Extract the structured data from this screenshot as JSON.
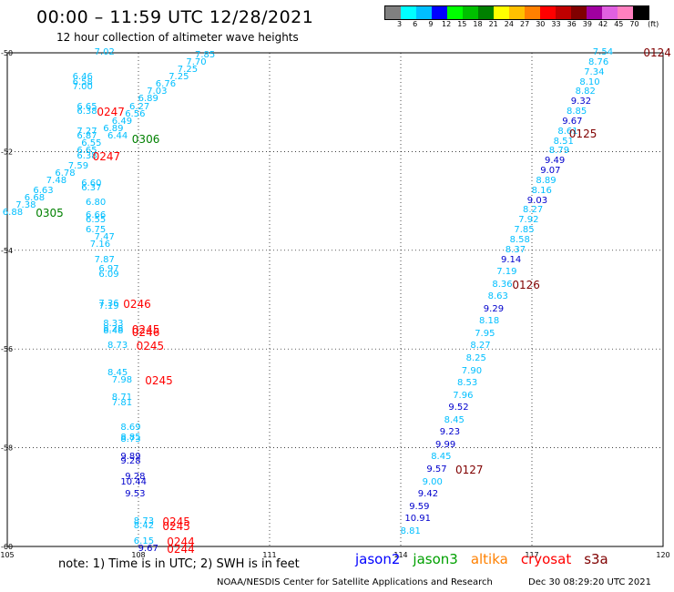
{
  "header": {
    "title": "00:00 – 11:59 UTC 12/28/2021",
    "subtitle": "12 hour collection of altimeter wave heights"
  },
  "colorbar": {
    "colors": [
      "#808080",
      "#00ffff",
      "#00bfff",
      "#0000ff",
      "#00ff00",
      "#00c000",
      "#008000",
      "#ffff00",
      "#ffc000",
      "#ff8000",
      "#ff0000",
      "#c00000",
      "#800000",
      "#a000a0",
      "#e060e0",
      "#ff80c0",
      "#000000"
    ],
    "ticks": [
      "3",
      "6",
      "9",
      "12",
      "15",
      "18",
      "21",
      "24",
      "27",
      "30",
      "33",
      "36",
      "39",
      "42",
      "45",
      "70"
    ],
    "unit": "(ft)"
  },
  "axes": {
    "x_ticks": [
      "105",
      "108",
      "111",
      "114",
      "117",
      "120"
    ],
    "y_ticks": [
      "-50",
      "-52",
      "-54",
      "-56",
      "-58",
      "-60"
    ],
    "lon_range": [
      105,
      120
    ],
    "lat_range": [
      -60,
      -50
    ]
  },
  "swh_labels": [
    {
      "t": "7.02",
      "lon": 107.2,
      "lat": -50.0,
      "c": "#00bfff"
    },
    {
      "t": "6.46",
      "lon": 106.7,
      "lat": -50.5,
      "c": "#00bfff"
    },
    {
      "t": "6.58",
      "lon": 106.7,
      "lat": -50.6,
      "c": "#00bfff"
    },
    {
      "t": "7.00",
      "lon": 106.7,
      "lat": -50.7,
      "c": "#00bfff"
    },
    {
      "t": "6.65",
      "lon": 106.8,
      "lat": -51.1,
      "c": "#00bfff"
    },
    {
      "t": "6.38",
      "lon": 106.8,
      "lat": -51.2,
      "c": "#00bfff"
    },
    {
      "t": "7.27",
      "lon": 106.8,
      "lat": -51.6,
      "c": "#00bfff"
    },
    {
      "t": "6.87",
      "lon": 106.8,
      "lat": -51.7,
      "c": "#00bfff"
    },
    {
      "t": "6.44",
      "lon": 107.5,
      "lat": -51.7,
      "c": "#00bfff"
    },
    {
      "t": "6.55",
      "lon": 106.9,
      "lat": -51.85,
      "c": "#00bfff"
    },
    {
      "t": "6.65",
      "lon": 106.8,
      "lat": -52.0,
      "c": "#00bfff"
    },
    {
      "t": "6.38",
      "lon": 106.8,
      "lat": -52.1,
      "c": "#00bfff"
    },
    {
      "t": "7.59",
      "lon": 106.6,
      "lat": -52.3,
      "c": "#00bfff"
    },
    {
      "t": "6.78",
      "lon": 106.3,
      "lat": -52.45,
      "c": "#00bfff"
    },
    {
      "t": "7.48",
      "lon": 106.1,
      "lat": -52.6,
      "c": "#00bfff"
    },
    {
      "t": "6.63",
      "lon": 105.8,
      "lat": -52.8,
      "c": "#00bfff"
    },
    {
      "t": "6.68",
      "lon": 105.6,
      "lat": -52.95,
      "c": "#00bfff"
    },
    {
      "t": "7.38",
      "lon": 105.4,
      "lat": -53.1,
      "c": "#00bfff"
    },
    {
      "t": "6.88",
      "lon": 105.1,
      "lat": -53.25,
      "c": "#00bfff"
    },
    {
      "t": "6.60",
      "lon": 106.9,
      "lat": -52.65,
      "c": "#00bfff"
    },
    {
      "t": "6.37",
      "lon": 106.9,
      "lat": -52.75,
      "c": "#00bfff"
    },
    {
      "t": "6.80",
      "lon": 107.0,
      "lat": -53.05,
      "c": "#00bfff"
    },
    {
      "t": "6.66",
      "lon": 107.0,
      "lat": -53.3,
      "c": "#00bfff"
    },
    {
      "t": "6.55",
      "lon": 107.0,
      "lat": -53.4,
      "c": "#00bfff"
    },
    {
      "t": "6.75",
      "lon": 107.0,
      "lat": -53.6,
      "c": "#00bfff"
    },
    {
      "t": "7.47",
      "lon": 107.2,
      "lat": -53.75,
      "c": "#00bfff"
    },
    {
      "t": "7.16",
      "lon": 107.1,
      "lat": -53.9,
      "c": "#00bfff"
    },
    {
      "t": "7.87",
      "lon": 107.2,
      "lat": -54.2,
      "c": "#00bfff"
    },
    {
      "t": "6.97",
      "lon": 107.3,
      "lat": -54.4,
      "c": "#00bfff"
    },
    {
      "t": "6.09",
      "lon": 107.3,
      "lat": -54.5,
      "c": "#00bfff"
    },
    {
      "t": "7.36",
      "lon": 107.3,
      "lat": -55.1,
      "c": "#00bfff"
    },
    {
      "t": "7.19",
      "lon": 107.3,
      "lat": -55.15,
      "c": "#00bfff"
    },
    {
      "t": "8.33",
      "lon": 107.4,
      "lat": -55.5,
      "c": "#00bfff"
    },
    {
      "t": "8.28",
      "lon": 107.4,
      "lat": -55.6,
      "c": "#00bfff"
    },
    {
      "t": "8.48",
      "lon": 107.4,
      "lat": -55.65,
      "c": "#00bfff"
    },
    {
      "t": "8.73",
      "lon": 107.5,
      "lat": -55.95,
      "c": "#00bfff"
    },
    {
      "t": "8.45",
      "lon": 107.5,
      "lat": -56.5,
      "c": "#00bfff"
    },
    {
      "t": "7.98",
      "lon": 107.6,
      "lat": -56.65,
      "c": "#00bfff"
    },
    {
      "t": "8.71",
      "lon": 107.6,
      "lat": -57.0,
      "c": "#00bfff"
    },
    {
      "t": "7.81",
      "lon": 107.6,
      "lat": -57.1,
      "c": "#00bfff"
    },
    {
      "t": "8.69",
      "lon": 107.8,
      "lat": -57.6,
      "c": "#00bfff"
    },
    {
      "t": "8.85",
      "lon": 107.8,
      "lat": -57.8,
      "c": "#00bfff"
    },
    {
      "t": "8.73",
      "lon": 107.8,
      "lat": -57.85,
      "c": "#00bfff"
    },
    {
      "t": "9.89",
      "lon": 107.8,
      "lat": -58.2,
      "c": "#0000cd"
    },
    {
      "t": "9.28",
      "lon": 107.8,
      "lat": -58.28,
      "c": "#0000cd"
    },
    {
      "t": "9.28",
      "lon": 107.9,
      "lat": -58.6,
      "c": "#0000cd"
    },
    {
      "t": "10.44",
      "lon": 107.8,
      "lat": -58.7,
      "c": "#0000cd"
    },
    {
      "t": "9.53",
      "lon": 107.9,
      "lat": -58.95,
      "c": "#0000cd"
    },
    {
      "t": "8.73",
      "lon": 108.1,
      "lat": -59.5,
      "c": "#00bfff"
    },
    {
      "t": "8.42",
      "lon": 108.1,
      "lat": -59.6,
      "c": "#00bfff"
    },
    {
      "t": "6.15",
      "lon": 108.1,
      "lat": -59.9,
      "c": "#00bfff"
    },
    {
      "t": "9.67",
      "lon": 108.2,
      "lat": -60.05,
      "c": "#0000cd"
    },
    {
      "t": "7.85",
      "lon": 109.5,
      "lat": -50.05,
      "c": "#00bfff"
    },
    {
      "t": "7.70",
      "lon": 109.3,
      "lat": -50.2,
      "c": "#00bfff"
    },
    {
      "t": "7.25",
      "lon": 109.1,
      "lat": -50.35,
      "c": "#00bfff"
    },
    {
      "t": "7.25",
      "lon": 108.9,
      "lat": -50.5,
      "c": "#00bfff"
    },
    {
      "t": "6.76",
      "lon": 108.6,
      "lat": -50.65,
      "c": "#00bfff"
    },
    {
      "t": "7.03",
      "lon": 108.4,
      "lat": -50.8,
      "c": "#00bfff"
    },
    {
      "t": "6.89",
      "lon": 108.2,
      "lat": -50.95,
      "c": "#00bfff"
    },
    {
      "t": "6.27",
      "lon": 108.0,
      "lat": -51.1,
      "c": "#00bfff"
    },
    {
      "t": "6.56",
      "lon": 107.9,
      "lat": -51.25,
      "c": "#00bfff"
    },
    {
      "t": "6.49",
      "lon": 107.6,
      "lat": -51.4,
      "c": "#00bfff"
    },
    {
      "t": "6.89",
      "lon": 107.4,
      "lat": -51.55,
      "c": "#00bfff"
    },
    {
      "t": "7.54",
      "lon": 118.6,
      "lat": -50.0,
      "c": "#00bfff"
    },
    {
      "t": "8.76",
      "lon": 118.5,
      "lat": -50.2,
      "c": "#00bfff"
    },
    {
      "t": "7.34",
      "lon": 118.4,
      "lat": -50.4,
      "c": "#00bfff"
    },
    {
      "t": "8.10",
      "lon": 118.3,
      "lat": -50.6,
      "c": "#00bfff"
    },
    {
      "t": "8.82",
      "lon": 118.2,
      "lat": -50.8,
      "c": "#00bfff"
    },
    {
      "t": "9.32",
      "lon": 118.1,
      "lat": -51.0,
      "c": "#0000cd"
    },
    {
      "t": "8.85",
      "lon": 118.0,
      "lat": -51.2,
      "c": "#00bfff"
    },
    {
      "t": "9.67",
      "lon": 117.9,
      "lat": -51.4,
      "c": "#0000cd"
    },
    {
      "t": "8.61",
      "lon": 117.8,
      "lat": -51.6,
      "c": "#00bfff"
    },
    {
      "t": "8.51",
      "lon": 117.7,
      "lat": -51.8,
      "c": "#00bfff"
    },
    {
      "t": "8.79",
      "lon": 117.6,
      "lat": -52.0,
      "c": "#00bfff"
    },
    {
      "t": "9.49",
      "lon": 117.5,
      "lat": -52.2,
      "c": "#0000cd"
    },
    {
      "t": "9.07",
      "lon": 117.4,
      "lat": -52.4,
      "c": "#0000cd"
    },
    {
      "t": "8.89",
      "lon": 117.3,
      "lat": -52.6,
      "c": "#00bfff"
    },
    {
      "t": "8.16",
      "lon": 117.2,
      "lat": -52.8,
      "c": "#00bfff"
    },
    {
      "t": "9.03",
      "lon": 117.1,
      "lat": -53.0,
      "c": "#0000cd"
    },
    {
      "t": "8.27",
      "lon": 117.0,
      "lat": -53.2,
      "c": "#00bfff"
    },
    {
      "t": "7.92",
      "lon": 116.9,
      "lat": -53.4,
      "c": "#00bfff"
    },
    {
      "t": "7.85",
      "lon": 116.8,
      "lat": -53.6,
      "c": "#00bfff"
    },
    {
      "t": "8.58",
      "lon": 116.7,
      "lat": -53.8,
      "c": "#00bfff"
    },
    {
      "t": "8.37",
      "lon": 116.6,
      "lat": -54.0,
      "c": "#00bfff"
    },
    {
      "t": "9.14",
      "lon": 116.5,
      "lat": -54.2,
      "c": "#0000cd"
    },
    {
      "t": "7.19",
      "lon": 116.4,
      "lat": -54.45,
      "c": "#00bfff"
    },
    {
      "t": "8.36",
      "lon": 116.3,
      "lat": -54.7,
      "c": "#00bfff"
    },
    {
      "t": "8.63",
      "lon": 116.2,
      "lat": -54.95,
      "c": "#00bfff"
    },
    {
      "t": "9.29",
      "lon": 116.1,
      "lat": -55.2,
      "c": "#0000cd"
    },
    {
      "t": "8.18",
      "lon": 116.0,
      "lat": -55.45,
      "c": "#00bfff"
    },
    {
      "t": "7.95",
      "lon": 115.9,
      "lat": -55.7,
      "c": "#00bfff"
    },
    {
      "t": "8.27",
      "lon": 115.8,
      "lat": -55.95,
      "c": "#00bfff"
    },
    {
      "t": "8.25",
      "lon": 115.7,
      "lat": -56.2,
      "c": "#00bfff"
    },
    {
      "t": "7.90",
      "lon": 115.6,
      "lat": -56.45,
      "c": "#00bfff"
    },
    {
      "t": "8.53",
      "lon": 115.5,
      "lat": -56.7,
      "c": "#00bfff"
    },
    {
      "t": "7.96",
      "lon": 115.4,
      "lat": -56.95,
      "c": "#00bfff"
    },
    {
      "t": "9.52",
      "lon": 115.3,
      "lat": -57.2,
      "c": "#0000cd"
    },
    {
      "t": "8.45",
      "lon": 115.2,
      "lat": -57.45,
      "c": "#00bfff"
    },
    {
      "t": "9.23",
      "lon": 115.1,
      "lat": -57.7,
      "c": "#0000cd"
    },
    {
      "t": "9.99",
      "lon": 115.0,
      "lat": -57.95,
      "c": "#0000cd"
    },
    {
      "t": "8.45",
      "lon": 114.9,
      "lat": -58.2,
      "c": "#00bfff"
    },
    {
      "t": "9.57",
      "lon": 114.8,
      "lat": -58.45,
      "c": "#0000cd"
    },
    {
      "t": "9.00",
      "lon": 114.7,
      "lat": -58.7,
      "c": "#00bfff"
    },
    {
      "t": "9.42",
      "lon": 114.6,
      "lat": -58.95,
      "c": "#0000cd"
    },
    {
      "t": "9.59",
      "lon": 114.4,
      "lat": -59.2,
      "c": "#0000cd"
    },
    {
      "t": "10.91",
      "lon": 114.3,
      "lat": -59.45,
      "c": "#0000cd"
    },
    {
      "t": "8.81",
      "lon": 114.2,
      "lat": -59.7,
      "c": "#00bfff"
    }
  ],
  "pass_labels": [
    {
      "t": "0124",
      "lon": 119.8,
      "lat": -50.0,
      "c": "#800000"
    },
    {
      "t": "0125",
      "lon": 118.1,
      "lat": -51.65,
      "c": "#800000"
    },
    {
      "t": "0126",
      "lon": 116.8,
      "lat": -54.7,
      "c": "#800000"
    },
    {
      "t": "0127",
      "lon": 115.5,
      "lat": -58.45,
      "c": "#800000"
    },
    {
      "t": "0247",
      "lon": 107.3,
      "lat": -51.2,
      "c": "#ff0000"
    },
    {
      "t": "0306",
      "lon": 108.1,
      "lat": -51.75,
      "c": "#008000"
    },
    {
      "t": "0247",
      "lon": 107.2,
      "lat": -52.1,
      "c": "#ff0000"
    },
    {
      "t": "0305",
      "lon": 105.9,
      "lat": -53.25,
      "c": "#008000"
    },
    {
      "t": "0246",
      "lon": 107.9,
      "lat": -55.1,
      "c": "#ff0000"
    },
    {
      "t": "0245",
      "lon": 108.1,
      "lat": -55.6,
      "c": "#ff0000"
    },
    {
      "t": "0246",
      "lon": 108.1,
      "lat": -55.67,
      "c": "#ff0000"
    },
    {
      "t": "0245",
      "lon": 108.2,
      "lat": -55.95,
      "c": "#ff0000"
    },
    {
      "t": "0245",
      "lon": 108.4,
      "lat": -56.65,
      "c": "#ff0000"
    },
    {
      "t": "0245",
      "lon": 108.8,
      "lat": -59.5,
      "c": "#ff0000"
    },
    {
      "t": "0245",
      "lon": 108.8,
      "lat": -59.6,
      "c": "#ff0000"
    },
    {
      "t": "0244",
      "lon": 108.9,
      "lat": -59.9,
      "c": "#ff0000"
    },
    {
      "t": "0244",
      "lon": 108.9,
      "lat": -60.05,
      "c": "#ff0000"
    }
  ],
  "footer": {
    "note": "note: 1) Time is in UTC; 2) SWH is in feet",
    "legend": [
      {
        "name": "jason2",
        "color": "#0000ff"
      },
      {
        "name": "jason3",
        "color": "#00a000"
      },
      {
        "name": "altika",
        "color": "#ff8000"
      },
      {
        "name": "cryosat",
        "color": "#ff0000"
      },
      {
        "name": "s3a",
        "color": "#800000"
      }
    ],
    "credit": "NOAA/NESDIS Center for Satellite Applications and Research",
    "date": "Dec 30 08:29:20 UTC 2021"
  }
}
